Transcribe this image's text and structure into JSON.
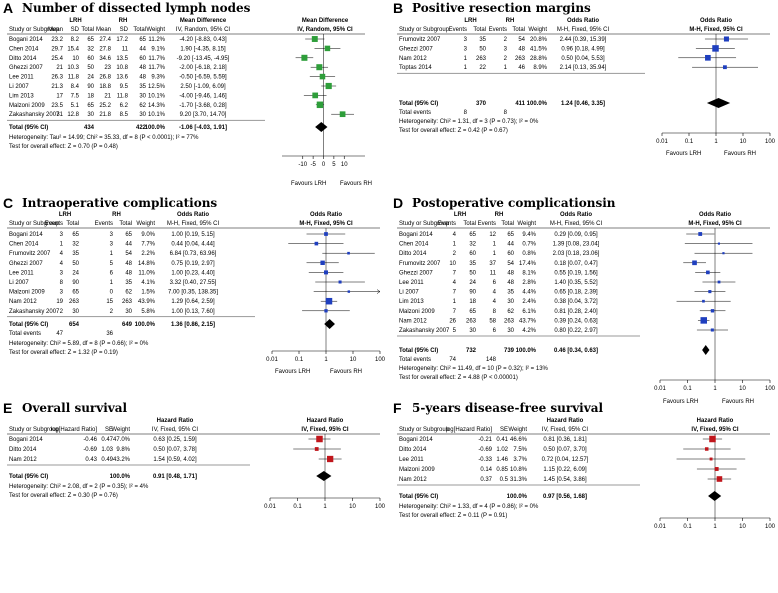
{
  "chart_data": [
    {
      "letter": "A",
      "title": "Number of dissected lymph nodes",
      "type": "forest",
      "measure": "md",
      "group1": "LRH",
      "group2": "RH",
      "col_headers": [
        "Study or Subgroup",
        "Mean",
        "SD",
        "Total",
        "Mean",
        "SD",
        "Total",
        "Weight",
        "IV, Random, 95% CI"
      ],
      "effect_header": [
        "Mean Difference",
        "IV, Random, 95% CI"
      ],
      "rows": [
        {
          "cells": [
            "Bogani 2014",
            "23.2",
            "8.2",
            "65",
            "27.4",
            "17.2",
            "65",
            "11.2%",
            "-4.20 [-8.83, 0.43]"
          ],
          "est": -4.2,
          "lo": -8.83,
          "hi": 0.43,
          "w": 11.2
        },
        {
          "cells": [
            "Chen 2014",
            "29.7",
            "15.4",
            "32",
            "27.8",
            "11",
            "44",
            "9.1%",
            "1.90 [-4.35, 8.15]"
          ],
          "est": 1.9,
          "lo": -4.35,
          "hi": 8.15,
          "w": 9.1
        },
        {
          "cells": [
            "Ditto 2014",
            "25.4",
            "10",
            "60",
            "34.6",
            "13.5",
            "60",
            "11.7%",
            "-9.20 [-13.45, -4.95]"
          ],
          "est": -9.2,
          "lo": -13.45,
          "hi": -4.95,
          "w": 11.7
        },
        {
          "cells": [
            "Ghezzi 2007",
            "21",
            "10.3",
            "50",
            "23",
            "10.8",
            "48",
            "11.7%",
            "-2.00 [-6.18, 2.18]"
          ],
          "est": -2.0,
          "lo": -6.18,
          "hi": 2.18,
          "w": 11.7
        },
        {
          "cells": [
            "Lee 2011",
            "26.3",
            "11.8",
            "24",
            "26.8",
            "13.6",
            "48",
            "9.3%",
            "-0.50 [-6.59, 5.59]"
          ],
          "est": -0.5,
          "lo": -6.59,
          "hi": 5.59,
          "w": 9.3
        },
        {
          "cells": [
            "Li 2007",
            "21.3",
            "8.4",
            "90",
            "18.8",
            "9.5",
            "35",
            "12.5%",
            "2.50 [-1.09, 6.09]"
          ],
          "est": 2.5,
          "lo": -1.09,
          "hi": 6.09,
          "w": 12.5
        },
        {
          "cells": [
            "Lim 2013",
            "17",
            "7.5",
            "18",
            "21",
            "11.8",
            "30",
            "10.1%",
            "-4.00 [-9.46, 1.46]"
          ],
          "est": -4.0,
          "lo": -9.46,
          "hi": 1.46,
          "w": 10.1
        },
        {
          "cells": [
            "Malzoni 2009",
            "23.5",
            "5.1",
            "65",
            "25.2",
            "6.2",
            "62",
            "14.3%",
            "-1.70 [-3.68, 0.28]"
          ],
          "est": -1.7,
          "lo": -3.68,
          "hi": 0.28,
          "w": 14.3
        },
        {
          "cells": [
            "Zakashansky 2007",
            "31",
            "12.8",
            "30",
            "21.8",
            "8.5",
            "30",
            "10.1%",
            "9.20 [3.70, 14.70]"
          ],
          "est": 9.2,
          "lo": 3.7,
          "hi": 14.7,
          "w": 10.1
        }
      ],
      "total": {
        "label": "Total (95% CI)",
        "n1": "434",
        "n2": "422",
        "weight": "100.0%",
        "ci": "-1.06 [-4.03, 1.91]",
        "est": -1.06,
        "lo": -4.03,
        "hi": 1.91
      },
      "events": null,
      "notes": [
        "Heterogeneity: Tau² = 14.99; Chi² = 35.33, df = 8 (P < 0.0001); I² = 77%",
        "Test for overall effect: Z = 0.70 (P = 0.48)"
      ],
      "axis": {
        "scale": "linear",
        "min": -20,
        "max": 20,
        "ticks": [
          "-10",
          "-5",
          "0",
          "5",
          "10"
        ],
        "tick_values": [
          -10,
          -5,
          0,
          5,
          10
        ],
        "null": 0
      },
      "favours": [
        "Favours LRH",
        "Favours RH"
      ],
      "marker_color": "#2e9e3a"
    },
    {
      "letter": "B",
      "title": "Positive resection margins",
      "type": "forest",
      "measure": "or",
      "group1": "LRH",
      "group2": "RH",
      "col_headers": [
        "Study or Subgroup",
        "Events",
        "Total",
        "Events",
        "Total",
        "Weight",
        "M-H, Fixed, 95% CI"
      ],
      "effect_header": [
        "Odds Ratio",
        "M-H, Fixed, 95% CI"
      ],
      "rows": [
        {
          "cells": [
            "Frumovitz 2007",
            "3",
            "35",
            "2",
            "54",
            "20.8%",
            "2.44 [0.39, 15.39]"
          ],
          "est": 2.44,
          "lo": 0.39,
          "hi": 15.39,
          "w": 20.8
        },
        {
          "cells": [
            "Ghezzi 2007",
            "3",
            "50",
            "3",
            "48",
            "41.5%",
            "0.96 [0.18, 4.99]"
          ],
          "est": 0.96,
          "lo": 0.18,
          "hi": 4.99,
          "w": 41.5
        },
        {
          "cells": [
            "Nam 2012",
            "1",
            "263",
            "2",
            "263",
            "28.8%",
            "0.50 [0.04, 5.53]"
          ],
          "est": 0.5,
          "lo": 0.04,
          "hi": 5.53,
          "w": 28.8
        },
        {
          "cells": [
            "Toptas 2014",
            "1",
            "22",
            "1",
            "46",
            "8.9%",
            "2.14 [0.13, 35.94]"
          ],
          "est": 2.14,
          "lo": 0.13,
          "hi": 35.94,
          "w": 8.9
        }
      ],
      "total": {
        "label": "Total (95% CI)",
        "n1": "370",
        "n2": "411",
        "weight": "100.0%",
        "ci": "1.24 [0.46, 3.35]",
        "est": 1.24,
        "lo": 0.46,
        "hi": 3.35
      },
      "events": {
        "label": "Total events",
        "e1": "8",
        "e2": "8"
      },
      "notes": [
        "Heterogeneity: Chi² = 1.31, df = 3 (P = 0.73); I² = 0%",
        "Test for overall effect: Z = 0.42 (P = 0.67)"
      ],
      "axis": {
        "scale": "log",
        "min": 0.01,
        "max": 100,
        "ticks": [
          "0.01",
          "0.1",
          "1",
          "10",
          "100"
        ],
        "tick_values": [
          0.01,
          0.1,
          1,
          10,
          100
        ],
        "null": 1
      },
      "favours": [
        "Favours LRH",
        "Favours RH"
      ],
      "marker_color": "#1f3fbf"
    },
    {
      "letter": "C",
      "title": "Intraoperative complications",
      "type": "forest",
      "measure": "or",
      "group1": "LRH",
      "group2": "RH",
      "col_headers": [
        "Study or Subgroup",
        "Events",
        "Total",
        "Events",
        "Total",
        "Weight",
        "M-H, Fixed, 95% CI"
      ],
      "effect_header": [
        "Odds Ratio",
        "M-H, Fixed, 95% CI"
      ],
      "rows": [
        {
          "cells": [
            "Bogani 2014",
            "3",
            "65",
            "3",
            "65",
            "9.0%",
            "1.00 [0.19, 5.15]"
          ],
          "est": 1.0,
          "lo": 0.19,
          "hi": 5.15,
          "w": 9.0
        },
        {
          "cells": [
            "Chen 2014",
            "1",
            "32",
            "3",
            "44",
            "7.7%",
            "0.44 [0.04, 4.44]"
          ],
          "est": 0.44,
          "lo": 0.04,
          "hi": 4.44,
          "w": 7.7
        },
        {
          "cells": [
            "Frumovitz 2007",
            "4",
            "35",
            "1",
            "54",
            "2.2%",
            "6.84 [0.73, 63.96]"
          ],
          "est": 6.84,
          "lo": 0.73,
          "hi": 63.96,
          "w": 2.2
        },
        {
          "cells": [
            "Ghezzi 2007",
            "4",
            "50",
            "5",
            "48",
            "14.8%",
            "0.75 [0.19, 2.97]"
          ],
          "est": 0.75,
          "lo": 0.19,
          "hi": 2.97,
          "w": 14.8
        },
        {
          "cells": [
            "Lee 2011",
            "3",
            "24",
            "6",
            "48",
            "11.0%",
            "1.00 [0.23, 4.40]"
          ],
          "est": 1.0,
          "lo": 0.23,
          "hi": 4.4,
          "w": 11.0
        },
        {
          "cells": [
            "Li 2007",
            "8",
            "90",
            "1",
            "35",
            "4.1%",
            "3.32 [0.40, 27.55]"
          ],
          "est": 3.32,
          "lo": 0.4,
          "hi": 27.55,
          "w": 4.1
        },
        {
          "cells": [
            "Malzoni 2009",
            "3",
            "65",
            "0",
            "62",
            "1.5%",
            "7.00 [0.35, 138.35]"
          ],
          "est": 7.0,
          "lo": 0.35,
          "hi": 138.35,
          "w": 1.5
        },
        {
          "cells": [
            "Nam 2012",
            "19",
            "263",
            "15",
            "263",
            "43.9%",
            "1.29 [0.64, 2.59]"
          ],
          "est": 1.29,
          "lo": 0.64,
          "hi": 2.59,
          "w": 43.9
        },
        {
          "cells": [
            "Zakashansky 2007",
            "2",
            "30",
            "2",
            "30",
            "5.8%",
            "1.00 [0.13, 7.60]"
          ],
          "est": 1.0,
          "lo": 0.13,
          "hi": 7.6,
          "w": 5.8
        }
      ],
      "total": {
        "label": "Total (95% CI)",
        "n1": "654",
        "n2": "649",
        "weight": "100.0%",
        "ci": "1.36 [0.86, 2.15]",
        "est": 1.36,
        "lo": 0.86,
        "hi": 2.15
      },
      "events": {
        "label": "Total events",
        "e1": "47",
        "e2": "36"
      },
      "notes": [
        "Heterogeneity: Chi² = 5.89, df = 8 (P = 0.66); I² = 0%",
        "Test for overall effect: Z = 1.32 (P = 0.19)"
      ],
      "axis": {
        "scale": "log",
        "min": 0.01,
        "max": 100,
        "ticks": [
          "0.01",
          "0.1",
          "1",
          "10",
          "100"
        ],
        "tick_values": [
          0.01,
          0.1,
          1,
          10,
          100
        ],
        "null": 1
      },
      "favours": [
        "Favours LRH",
        "Favours RH"
      ],
      "marker_color": "#1f3fbf"
    },
    {
      "letter": "D",
      "title": "Postoperative complicationsin",
      "type": "forest",
      "measure": "or",
      "group1": "LRH",
      "group2": "RH",
      "col_headers": [
        "Study or Subgroup",
        "Events",
        "Total",
        "Events",
        "Total",
        "Weight",
        "M-H, Fixed, 95% CI"
      ],
      "effect_header": [
        "Odds Ratio",
        "M-H, Fixed, 95% CI"
      ],
      "rows": [
        {
          "cells": [
            "Bogani 2014",
            "4",
            "65",
            "12",
            "65",
            "9.4%",
            "0.29 [0.09, 0.95]"
          ],
          "est": 0.29,
          "lo": 0.09,
          "hi": 0.95,
          "w": 9.4
        },
        {
          "cells": [
            "Chen 2014",
            "1",
            "32",
            "1",
            "44",
            "0.7%",
            "1.39 [0.08, 23.04]"
          ],
          "est": 1.39,
          "lo": 0.08,
          "hi": 23.04,
          "w": 0.7
        },
        {
          "cells": [
            "Ditto 2014",
            "2",
            "60",
            "1",
            "60",
            "0.8%",
            "2.03 [0.18, 23.06]"
          ],
          "est": 2.03,
          "lo": 0.18,
          "hi": 23.06,
          "w": 0.8
        },
        {
          "cells": [
            "Frumovitz 2007",
            "10",
            "35",
            "37",
            "54",
            "17.4%",
            "0.18 [0.07, 0.47]"
          ],
          "est": 0.18,
          "lo": 0.07,
          "hi": 0.47,
          "w": 17.4
        },
        {
          "cells": [
            "Ghezzi 2007",
            "7",
            "50",
            "11",
            "48",
            "8.1%",
            "0.55 [0.19, 1.56]"
          ],
          "est": 0.55,
          "lo": 0.19,
          "hi": 1.56,
          "w": 8.1
        },
        {
          "cells": [
            "Lee 2011",
            "4",
            "24",
            "6",
            "48",
            "2.8%",
            "1.40 [0.35, 5.52]"
          ],
          "est": 1.4,
          "lo": 0.35,
          "hi": 5.52,
          "w": 2.8
        },
        {
          "cells": [
            "Li 2007",
            "7",
            "90",
            "4",
            "35",
            "4.4%",
            "0.65 [0.18, 2.39]"
          ],
          "est": 0.65,
          "lo": 0.18,
          "hi": 2.39,
          "w": 4.4
        },
        {
          "cells": [
            "Lim 2013",
            "1",
            "18",
            "4",
            "30",
            "2.4%",
            "0.38 [0.04, 3.72]"
          ],
          "est": 0.38,
          "lo": 0.04,
          "hi": 3.72,
          "w": 2.4
        },
        {
          "cells": [
            "Malzoni 2009",
            "7",
            "65",
            "8",
            "62",
            "6.1%",
            "0.81 [0.28, 2.40]"
          ],
          "est": 0.81,
          "lo": 0.28,
          "hi": 2.4,
          "w": 6.1
        },
        {
          "cells": [
            "Nam 2012",
            "26",
            "263",
            "58",
            "263",
            "43.7%",
            "0.39 [0.24, 0.63]"
          ],
          "est": 0.39,
          "lo": 0.24,
          "hi": 0.63,
          "w": 43.7
        },
        {
          "cells": [
            "Zakashansky 2007",
            "5",
            "30",
            "6",
            "30",
            "4.2%",
            "0.80 [0.22, 2.97]"
          ],
          "est": 0.8,
          "lo": 0.22,
          "hi": 2.97,
          "w": 4.2
        }
      ],
      "total": {
        "label": "Total (95% CI)",
        "n1": "732",
        "n2": "739",
        "weight": "100.0%",
        "ci": "0.46 [0.34, 0.63]",
        "est": 0.46,
        "lo": 0.34,
        "hi": 0.63
      },
      "events": {
        "label": "Total events",
        "e1": "74",
        "e2": "148"
      },
      "notes": [
        "Heterogeneity: Chi² = 11.49, df = 10 (P = 0.32); I² = 13%",
        "Test for overall effect: Z = 4.88 (P < 0.00001)"
      ],
      "axis": {
        "scale": "log",
        "min": 0.01,
        "max": 100,
        "ticks": [
          "0.01",
          "0.1",
          "1",
          "10",
          "100"
        ],
        "tick_values": [
          0.01,
          0.1,
          1,
          10,
          100
        ],
        "null": 1
      },
      "favours": [
        "Favours LRH",
        "Favours RH"
      ],
      "marker_color": "#1f3fbf"
    },
    {
      "letter": "E",
      "title": "Overall survival",
      "type": "forest",
      "measure": "hr",
      "group1": "",
      "group2": "",
      "col_headers": [
        "Study or Subgroup",
        "log[Hazard Ratio]",
        "SE",
        "Weight",
        "IV, Fixed, 95% CI"
      ],
      "effect_header": [
        "Hazard Ratio",
        "IV, Fixed, 95% CI"
      ],
      "top_header": "Hazard Ratio",
      "rows": [
        {
          "cells": [
            "Bogani 2014",
            "-0.46",
            "0.47",
            "47.0%",
            "0.63 [0.25, 1.59]"
          ],
          "est": 0.63,
          "lo": 0.25,
          "hi": 1.59,
          "w": 47.0
        },
        {
          "cells": [
            "Ditto 2014",
            "-0.69",
            "1.03",
            "9.8%",
            "0.50 [0.07, 3.78]"
          ],
          "est": 0.5,
          "lo": 0.07,
          "hi": 3.78,
          "w": 9.8
        },
        {
          "cells": [
            "Nam 2012",
            "0.43",
            "0.49",
            "43.2%",
            "1.54 [0.59, 4.02]"
          ],
          "est": 1.54,
          "lo": 0.59,
          "hi": 4.02,
          "w": 43.2
        }
      ],
      "total": {
        "label": "Total (95% CI)",
        "weight": "100.0%",
        "ci": "0.91 [0.48, 1.71]",
        "est": 0.91,
        "lo": 0.48,
        "hi": 1.71
      },
      "events": null,
      "notes": [
        "Heterogeneity: Chi² = 2.08, df = 2 (P = 0.35); I² = 4%",
        "Test for overall effect: Z = 0.30 (P = 0.76)"
      ],
      "axis": {
        "scale": "log",
        "min": 0.01,
        "max": 100,
        "ticks": [
          "0.01",
          "0.1",
          "1",
          "10",
          "100"
        ],
        "tick_values": [
          0.01,
          0.1,
          1,
          10,
          100
        ],
        "null": 1
      },
      "favours": [],
      "marker_color": "#c0161c"
    },
    {
      "letter": "F",
      "title": "5-years disease-free survival",
      "type": "forest",
      "measure": "hr",
      "group1": "",
      "group2": "",
      "col_headers": [
        "Study or Subgroup",
        "log[Hazard Ratio]",
        "SE",
        "Weight",
        "IV, Fixed, 95% CI"
      ],
      "effect_header": [
        "Hazard Ratio",
        "IV, Fixed, 95% CI"
      ],
      "top_header": "Hazard Ratio",
      "rows": [
        {
          "cells": [
            "Bogani 2014",
            "-0.21",
            "0.41",
            "46.6%",
            "0.81 [0.36, 1.81]"
          ],
          "est": 0.81,
          "lo": 0.36,
          "hi": 1.81,
          "w": 46.6
        },
        {
          "cells": [
            "Ditto 2014",
            "-0.69",
            "1.02",
            "7.5%",
            "0.50 [0.07, 3.70]"
          ],
          "est": 0.5,
          "lo": 0.07,
          "hi": 3.7,
          "w": 7.5
        },
        {
          "cells": [
            "Lee 2011",
            "-0.33",
            "1.46",
            "3.7%",
            "0.72 [0.04, 12.57]"
          ],
          "est": 0.72,
          "lo": 0.04,
          "hi": 12.57,
          "w": 3.7
        },
        {
          "cells": [
            "Malzoni 2009",
            "0.14",
            "0.85",
            "10.8%",
            "1.15 [0.22, 6.09]"
          ],
          "est": 1.15,
          "lo": 0.22,
          "hi": 6.09,
          "w": 10.8
        },
        {
          "cells": [
            "Nam 2012",
            "0.37",
            "0.5",
            "31.3%",
            "1.45 [0.54, 3.86]"
          ],
          "est": 1.45,
          "lo": 0.54,
          "hi": 3.86,
          "w": 31.3
        }
      ],
      "total": {
        "label": "Total (95% CI)",
        "weight": "100.0%",
        "ci": "0.97 [0.56, 1.68]",
        "est": 0.97,
        "lo": 0.56,
        "hi": 1.68
      },
      "events": null,
      "notes": [
        "Heterogeneity: Chi² = 1.33, df = 4 (P = 0.86); I² = 0%",
        "Test for overall effect: Z = 0.11 (P = 0.91)"
      ],
      "axis": {
        "scale": "log",
        "min": 0.01,
        "max": 100,
        "ticks": [
          "0.01",
          "0.1",
          "1",
          "10",
          "100"
        ],
        "tick_values": [
          0.01,
          0.1,
          1,
          10,
          100
        ],
        "null": 1
      },
      "favours": [],
      "marker_color": "#c0161c"
    }
  ]
}
